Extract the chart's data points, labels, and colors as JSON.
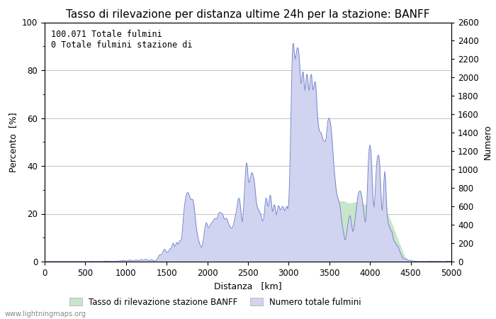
{
  "title": "Tasso di rilevazione per distanza ultime 24h per la stazione: BANFF",
  "xlabel": "Distanza   [km]",
  "ylabel_left": "Percento  [%]",
  "ylabel_right": "Numero",
  "annotation_line1": "100.071 Totale fulmini",
  "annotation_line2": "0 Totale fulmini stazione di",
  "watermark": "www.lightningmaps.org",
  "legend_label1": "Tasso di rilevazione stazione BANFF",
  "legend_label2": "Numero totale fulmini",
  "xlim": [
    0,
    5000
  ],
  "ylim_left": [
    0,
    100
  ],
  "ylim_right": [
    0,
    2600
  ],
  "xticks": [
    0,
    500,
    1000,
    1500,
    2000,
    2500,
    3000,
    3500,
    4000,
    4500,
    5000
  ],
  "yticks_left": [
    0,
    20,
    40,
    60,
    80,
    100
  ],
  "yticks_right": [
    0,
    200,
    400,
    600,
    800,
    1000,
    1200,
    1400,
    1600,
    1800,
    2000,
    2200,
    2400,
    2600
  ],
  "fill_green_color": "#c8e6c9",
  "fill_blue_color": "#d0d4f0",
  "line_color": "#7986cb",
  "background_color": "#ffffff",
  "grid_color": "#aaaaaa",
  "title_fontsize": 11,
  "label_fontsize": 9,
  "tick_fontsize": 8.5,
  "annotation_fontsize": 8.5,
  "figsize": [
    7.0,
    4.5
  ],
  "dpi": 100
}
